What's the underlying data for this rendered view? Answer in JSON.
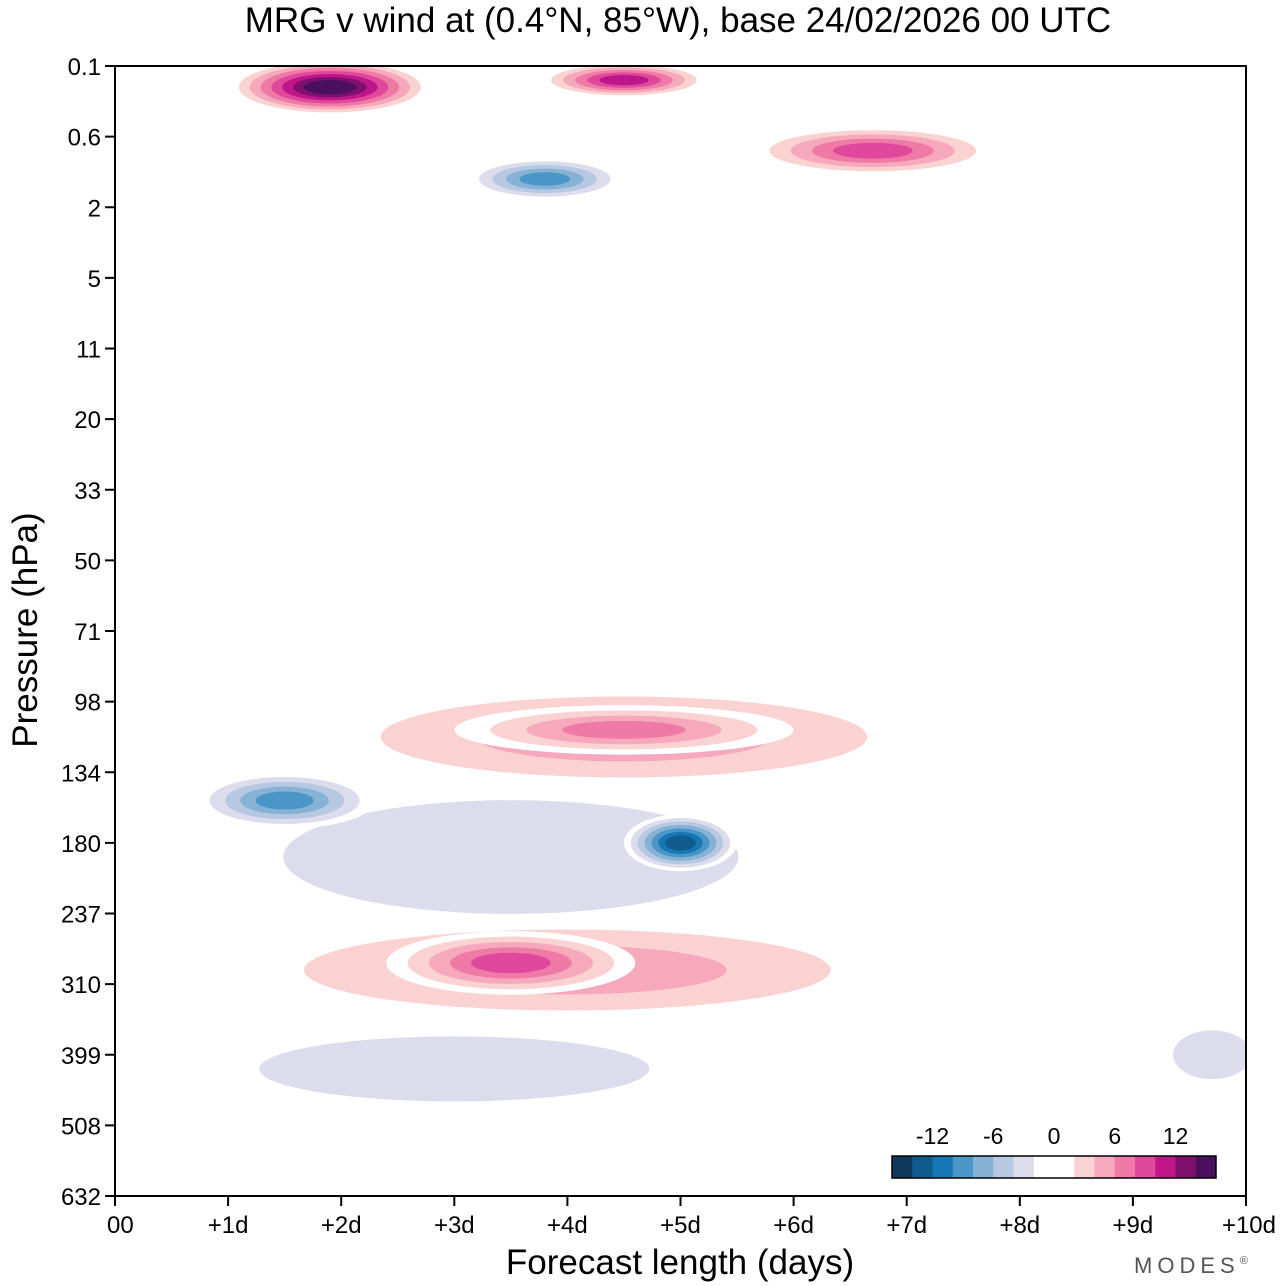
{
  "chart_data": {
    "type": "heatmap",
    "title": "MRG v wind at (0.4°N, 85°W),  base 24/02/2026  00 UTC",
    "xlabel": "Forecast length (days)",
    "ylabel": "Pressure (hPa)",
    "x_ticks": [
      "00",
      "+1d",
      "+2d",
      "+3d",
      "+4d",
      "+5d",
      "+6d",
      "+7d",
      "+8d",
      "+9d",
      "+10d"
    ],
    "y_ticks": [
      "0.1",
      "0.6",
      "2",
      "5",
      "11",
      "20",
      "33",
      "50",
      "71",
      "98",
      "134",
      "180",
      "237",
      "310",
      "399",
      "508",
      "632"
    ],
    "xlim_days": [
      0,
      10
    ],
    "ylim_hpa": [
      0.1,
      632
    ],
    "colorbar": {
      "tick_labels": [
        "-12",
        "-6",
        "0",
        "6",
        "12"
      ],
      "tick_values": [
        -12,
        -6,
        0,
        6,
        12
      ],
      "levels": [
        -16,
        -14,
        -12,
        -10,
        -8,
        -6,
        -4,
        -2,
        0,
        2,
        4,
        6,
        8,
        10,
        12,
        14,
        16
      ],
      "colors": [
        "#0d3a5c",
        "#0f5c8c",
        "#1676b6",
        "#4a96c6",
        "#86b2d6",
        "#b6c8e2",
        "#dcdcec",
        "#ffffff",
        "#ffffff",
        "#fbd2d2",
        "#f6a8bc",
        "#f07aa6",
        "#e0489c",
        "#c0168c",
        "#80106e",
        "#4a0f5e"
      ]
    },
    "features": [
      {
        "name": "neg-band-upper",
        "day": 3.5,
        "level": 11.2,
        "value": -4,
        "span_days": 7.0,
        "span_levels": 2.8
      },
      {
        "name": "neg-core-134",
        "day": 1.5,
        "level": 10.4,
        "value": -10,
        "span_days": 1.6,
        "span_levels": 0.8
      },
      {
        "name": "neg-core-180",
        "day": 5.0,
        "level": 11.0,
        "value": -14,
        "span_days": 1.0,
        "span_levels": 0.8
      },
      {
        "name": "neg-band-lower",
        "day": 3.0,
        "level": 14.2,
        "value": -4,
        "span_days": 6.0,
        "span_levels": 1.6
      },
      {
        "name": "pos-band-98",
        "day": 4.5,
        "level": 9.5,
        "value": 6,
        "span_days": 6.0,
        "span_levels": 1.6
      },
      {
        "name": "pos-core-98",
        "day": 4.5,
        "level": 9.4,
        "value": 8,
        "span_days": 3.0,
        "span_levels": 0.7
      },
      {
        "name": "pos-band-310",
        "day": 4.0,
        "level": 12.8,
        "value": 6,
        "span_days": 6.5,
        "span_levels": 1.6
      },
      {
        "name": "pos-core-310",
        "day": 3.5,
        "level": 12.7,
        "value": 10,
        "span_days": 2.2,
        "span_levels": 0.9
      },
      {
        "name": "pos-top",
        "day": 1.9,
        "level": 0.3,
        "value": 16,
        "span_days": 1.8,
        "span_levels": 0.8
      },
      {
        "name": "pos-top-right",
        "day": 4.5,
        "level": 0.2,
        "value": 12,
        "span_days": 1.5,
        "span_levels": 0.5
      },
      {
        "name": "neg-top-1hpa",
        "day": 3.8,
        "level": 1.6,
        "value": -10,
        "span_days": 1.4,
        "span_levels": 0.6
      },
      {
        "name": "pos-1hpa",
        "day": 6.7,
        "level": 1.2,
        "value": 10,
        "span_days": 2.2,
        "span_levels": 0.7
      },
      {
        "name": "neg-bottom-right",
        "day": 9.7,
        "level": 14.0,
        "value": -4,
        "span_days": 1.2,
        "span_levels": 1.2
      }
    ]
  },
  "legend": {
    "brand_text": "MODES",
    "brand_mark": "®"
  },
  "colors": {
    "axis": "#000000",
    "background": "#ffffff"
  }
}
